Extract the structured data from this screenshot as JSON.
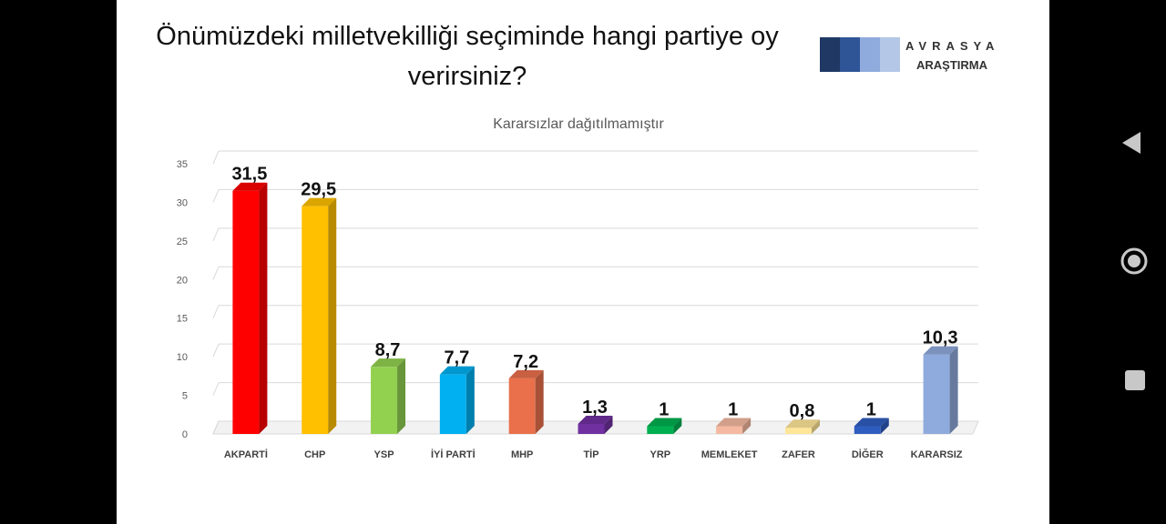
{
  "slide": {
    "title": "Önümüzdeki milletvekilliği seçiminde hangi partiye oy verirsiniz?",
    "logo": {
      "line1": "AVRASYA",
      "line2": "ARAŞTIRMA",
      "block_colors": [
        "#1f3864",
        "#2f5597",
        "#8faadc",
        "#b4c7e7"
      ]
    }
  },
  "chart_data": {
    "type": "bar",
    "subtitle": "Kararsızlar dağıtılmamıştır",
    "categories": [
      "AKPARTİ",
      "CHP",
      "YSP",
      "İYİ PARTİ",
      "MHP",
      "TİP",
      "YRP",
      "MEMLEKET",
      "ZAFER",
      "DİĞER",
      "KARARSIZ"
    ],
    "values": [
      31.5,
      29.5,
      8.7,
      7.7,
      7.2,
      1.3,
      1,
      1,
      0.8,
      1,
      10.3
    ],
    "value_labels": [
      "31,5",
      "29,5",
      "8,7",
      "7,7",
      "7,2",
      "1,3",
      "1",
      "1",
      "0,8",
      "1",
      "10,3"
    ],
    "colors": [
      "#ff0000",
      "#ffc000",
      "#92d050",
      "#00b0f0",
      "#e9704b",
      "#7030a0",
      "#00b050",
      "#f4b9a0",
      "#ffe699",
      "#2f5dbf",
      "#8faadc"
    ],
    "ylim": [
      0,
      35
    ],
    "yticks": [
      0,
      5,
      10,
      15,
      20,
      25,
      30,
      35
    ],
    "grid": true,
    "legend": "none"
  },
  "nav": {
    "back_icon": "back-triangle-icon",
    "home_icon": "home-circle-icon",
    "recents_icon": "recents-square-icon"
  }
}
